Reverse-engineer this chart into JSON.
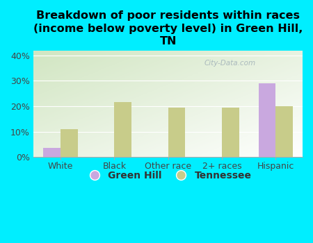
{
  "title": "Breakdown of poor residents within races\n(income below poverty level) in Green Hill,\nTN",
  "categories": [
    "White",
    "Black",
    "Other race",
    "2+ races",
    "Hispanic"
  ],
  "green_hill_values": [
    3.5,
    0,
    0,
    0,
    29.0
  ],
  "tennessee_values": [
    11.0,
    21.5,
    19.5,
    19.5,
    20.0
  ],
  "green_hill_color": "#c9a8df",
  "tennessee_color": "#c8cc8a",
  "background_color": "#00eeff",
  "ylim": [
    0,
    42
  ],
  "yticks": [
    0,
    10,
    20,
    30,
    40
  ],
  "ytick_labels": [
    "0%",
    "10%",
    "20%",
    "30%",
    "40%"
  ],
  "bar_width": 0.32,
  "legend_labels": [
    "Green Hill",
    "Tennessee"
  ],
  "title_fontsize": 11.5,
  "tick_fontsize": 9,
  "legend_fontsize": 10,
  "watermark": "City-Data.com"
}
